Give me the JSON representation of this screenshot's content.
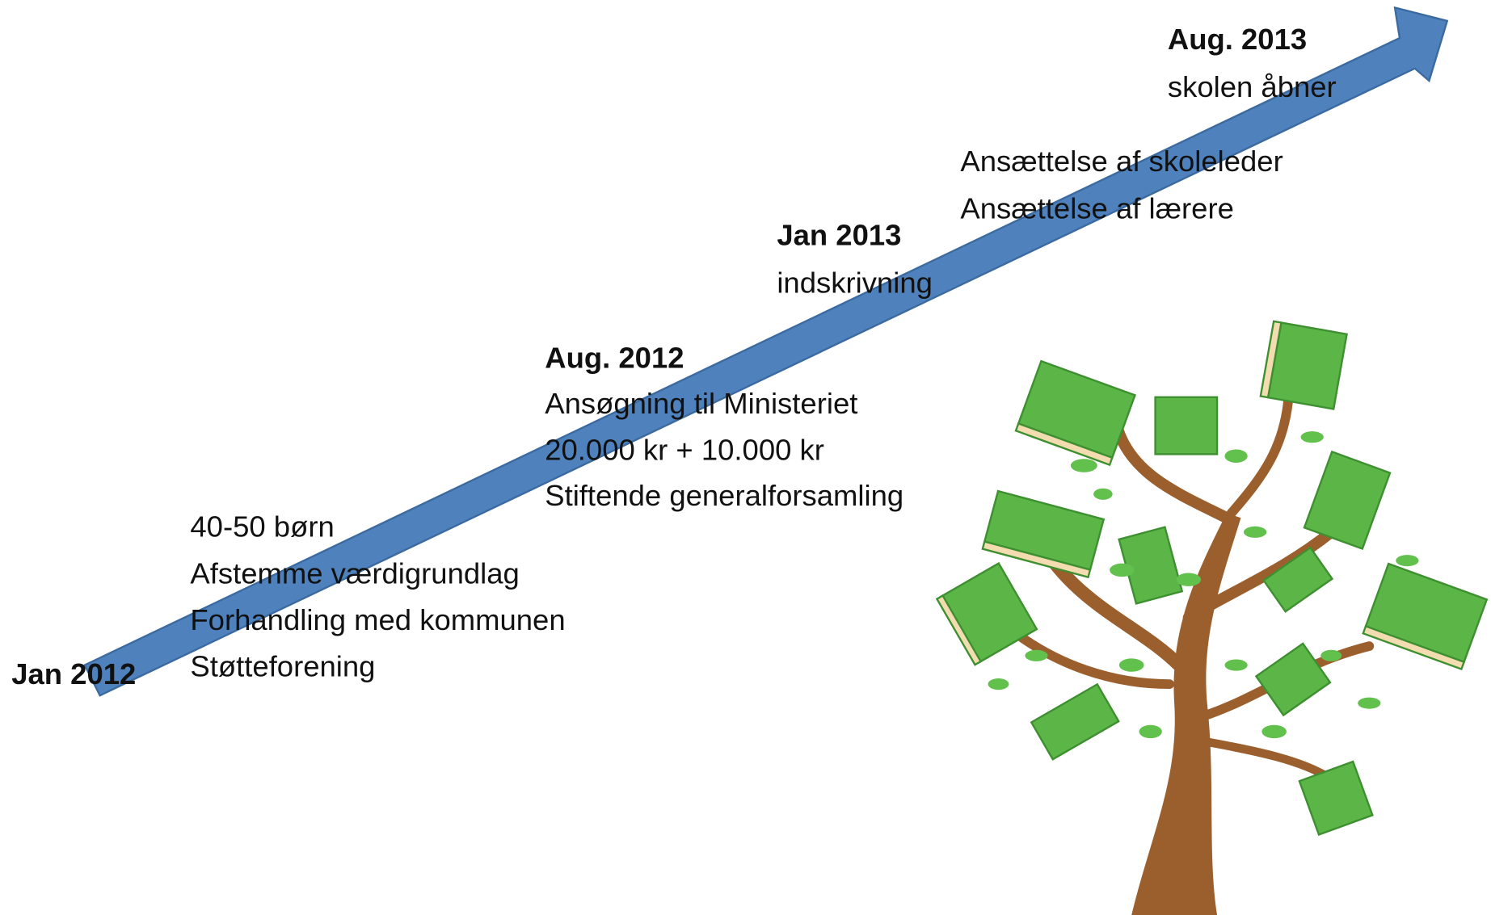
{
  "milestones": [
    {
      "date": "Jan 2012",
      "items": [
        "40-50 børn",
        "Afstemme værdigrundlag",
        "Forhandling med kommunen",
        "Støtteforening"
      ]
    },
    {
      "date": "Aug. 2012",
      "items": [
        "Ansøgning til Ministeriet",
        "20.000 kr + 10.000 kr",
        "Stiftende generalforsamling"
      ]
    },
    {
      "date": "Jan 2013",
      "items": [
        "indskrivning"
      ]
    },
    {
      "items": [
        "Ansættelse af skoleleder",
        "Ansættelse af lærere"
      ]
    },
    {
      "date": "Aug. 2013",
      "items": [
        "skolen åbner"
      ]
    }
  ]
}
